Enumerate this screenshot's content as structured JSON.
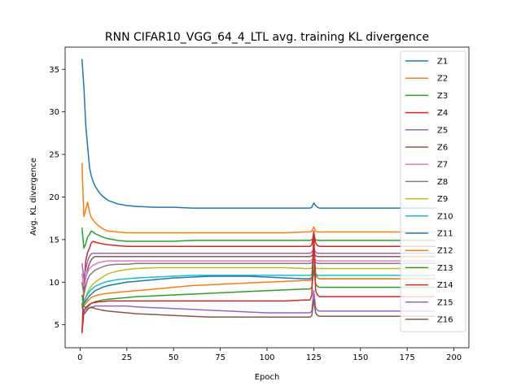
{
  "chart_data": {
    "type": "line",
    "title": "RNN CIFAR10_VGG_64_4_LTL avg. training KL divergence",
    "xlabel": "Epoch",
    "ylabel": "Avg. KL divergence",
    "xlim": [
      -8,
      208
    ],
    "ylim": [
      2.3,
      37.6
    ],
    "xticks": [
      0,
      25,
      50,
      75,
      100,
      125,
      150,
      175,
      200
    ],
    "yticks": [
      5,
      10,
      15,
      20,
      25,
      30,
      35
    ],
    "legend_position": "upper right",
    "grid": false,
    "x": [
      1,
      2,
      3,
      4,
      5,
      6,
      7,
      8,
      10,
      12,
      15,
      20,
      25,
      30,
      40,
      50,
      60,
      70,
      80,
      90,
      100,
      110,
      120,
      123,
      124,
      125,
      126,
      127,
      128,
      130,
      135,
      140,
      150,
      160,
      170,
      175,
      180,
      190
    ],
    "series": [
      {
        "name": "Z1",
        "color": "#1f77b4",
        "values": [
          36.2,
          33.0,
          28.5,
          26.0,
          23.5,
          22.5,
          21.8,
          21.3,
          20.6,
          20.1,
          19.6,
          19.2,
          19.0,
          18.9,
          18.8,
          18.8,
          18.7,
          18.7,
          18.7,
          18.7,
          18.7,
          18.7,
          18.7,
          18.7,
          18.8,
          19.3,
          19.0,
          18.8,
          18.7,
          18.7,
          18.7,
          18.7,
          18.7,
          18.7,
          18.7,
          18.7,
          18.7,
          18.7
        ]
      },
      {
        "name": "Z2",
        "color": "#ff7f0e",
        "values": [
          24.0,
          17.7,
          18.5,
          19.4,
          18.2,
          17.6,
          17.3,
          17.0,
          16.6,
          16.3,
          16.0,
          15.9,
          15.8,
          15.8,
          15.8,
          15.8,
          15.8,
          15.8,
          15.8,
          15.8,
          15.8,
          15.8,
          15.9,
          15.9,
          16.0,
          16.5,
          16.0,
          15.9,
          15.9,
          15.9,
          15.9,
          15.9,
          15.9,
          15.9,
          15.9,
          15.9,
          15.9,
          15.9
        ]
      },
      {
        "name": "Z3",
        "color": "#2ca02c",
        "values": [
          16.4,
          14.0,
          14.5,
          15.3,
          15.6,
          16.0,
          15.9,
          15.7,
          15.5,
          15.3,
          15.1,
          14.9,
          14.8,
          14.8,
          14.8,
          14.8,
          14.9,
          14.9,
          14.9,
          14.9,
          14.9,
          14.9,
          14.9,
          14.9,
          15.0,
          15.2,
          15.0,
          14.9,
          14.9,
          14.9,
          14.9,
          14.9,
          14.9,
          14.9,
          14.9,
          14.9,
          14.9,
          14.9
        ]
      },
      {
        "name": "Z4",
        "color": "#d62728",
        "values": [
          4.0,
          9.5,
          12.5,
          13.5,
          14.0,
          14.6,
          14.8,
          14.7,
          14.6,
          14.5,
          14.4,
          14.3,
          14.2,
          14.2,
          14.2,
          14.2,
          14.2,
          14.2,
          14.2,
          14.2,
          14.2,
          14.2,
          14.2,
          14.2,
          14.4,
          15.9,
          14.6,
          14.3,
          14.2,
          14.2,
          14.2,
          14.2,
          14.2,
          14.2,
          14.2,
          14.2,
          14.2,
          14.2
        ]
      },
      {
        "name": "Z5",
        "color": "#9467bd",
        "values": [
          12.2,
          10.5,
          11.5,
          12.5,
          13.0,
          13.3,
          13.4,
          13.4,
          13.4,
          13.4,
          13.4,
          13.4,
          13.4,
          13.4,
          13.4,
          13.4,
          13.4,
          13.4,
          13.4,
          13.4,
          13.4,
          13.4,
          13.4,
          13.4,
          13.5,
          14.0,
          13.5,
          13.4,
          13.4,
          13.4,
          13.4,
          13.4,
          13.4,
          13.4,
          13.4,
          13.4,
          13.4,
          13.4
        ]
      },
      {
        "name": "Z6",
        "color": "#8c564b",
        "values": [
          10.0,
          9.0,
          10.5,
          11.5,
          12.2,
          12.6,
          12.9,
          13.0,
          13.0,
          13.0,
          13.0,
          13.0,
          13.0,
          13.0,
          13.0,
          13.0,
          13.0,
          13.0,
          13.0,
          13.0,
          13.0,
          13.0,
          13.0,
          13.0,
          13.1,
          13.5,
          13.1,
          13.0,
          13.0,
          13.0,
          13.0,
          13.0,
          13.0,
          13.0,
          13.0,
          13.0,
          13.0,
          13.0
        ]
      },
      {
        "name": "Z7",
        "color": "#e377c2",
        "values": [
          11.0,
          9.5,
          10.5,
          11.2,
          11.6,
          11.8,
          12.0,
          12.1,
          12.3,
          12.4,
          12.5,
          12.5,
          12.5,
          12.5,
          12.5,
          12.5,
          12.5,
          12.5,
          12.5,
          12.5,
          12.5,
          12.5,
          12.5,
          12.5,
          12.6,
          13.0,
          12.6,
          12.5,
          12.5,
          12.5,
          12.5,
          12.5,
          12.5,
          12.5,
          12.5,
          12.5,
          12.5,
          12.5
        ]
      },
      {
        "name": "Z8",
        "color": "#7f7f7f",
        "values": [
          10.0,
          8.5,
          9.5,
          10.3,
          10.8,
          11.0,
          11.2,
          11.4,
          11.6,
          11.8,
          12.0,
          12.1,
          12.1,
          12.2,
          12.2,
          12.2,
          12.2,
          12.2,
          12.2,
          12.2,
          12.2,
          12.2,
          12.2,
          12.2,
          12.3,
          12.7,
          12.3,
          12.2,
          12.2,
          12.2,
          12.2,
          12.2,
          12.2,
          12.2,
          12.2,
          12.2,
          12.2,
          12.2
        ]
      },
      {
        "name": "Z9",
        "color": "#bcbd22",
        "values": [
          8.0,
          7.5,
          8.2,
          8.8,
          9.2,
          9.5,
          9.8,
          10.0,
          10.3,
          10.6,
          11.0,
          11.3,
          11.5,
          11.6,
          11.7,
          11.7,
          11.7,
          11.7,
          11.7,
          11.7,
          11.7,
          11.7,
          11.6,
          11.6,
          11.7,
          12.2,
          11.7,
          11.6,
          11.6,
          11.6,
          11.6,
          11.6,
          11.6,
          11.6,
          11.6,
          11.6,
          11.6,
          11.6
        ]
      },
      {
        "name": "Z10",
        "color": "#17becf",
        "values": [
          7.5,
          7.8,
          8.2,
          8.6,
          8.9,
          9.1,
          9.3,
          9.5,
          9.7,
          9.9,
          10.1,
          10.3,
          10.4,
          10.5,
          10.6,
          10.7,
          10.8,
          10.8,
          10.8,
          10.8,
          10.8,
          10.8,
          10.8,
          10.8,
          10.9,
          12.0,
          11.0,
          10.8,
          10.8,
          10.8,
          10.8,
          10.8,
          10.8,
          10.8,
          10.8,
          10.8,
          10.8,
          10.8
        ]
      },
      {
        "name": "Z11",
        "color": "#1f77b4",
        "values": [
          7.0,
          7.5,
          7.8,
          8.1,
          8.4,
          8.6,
          8.8,
          9.0,
          9.2,
          9.4,
          9.6,
          9.8,
          10.0,
          10.1,
          10.3,
          10.5,
          10.6,
          10.7,
          10.7,
          10.7,
          10.6,
          10.5,
          10.4,
          10.4,
          10.6,
          14.5,
          11.0,
          10.5,
          10.4,
          10.4,
          10.4,
          10.4,
          10.4,
          10.4,
          10.4,
          10.4,
          10.4,
          10.4
        ]
      },
      {
        "name": "Z12",
        "color": "#ff7f0e",
        "values": [
          7.5,
          7.2,
          7.5,
          7.8,
          8.0,
          8.2,
          8.3,
          8.4,
          8.5,
          8.6,
          8.7,
          8.8,
          8.9,
          9.0,
          9.2,
          9.4,
          9.6,
          9.7,
          9.8,
          9.9,
          10.0,
          10.1,
          10.2,
          10.2,
          10.4,
          13.0,
          10.8,
          10.5,
          10.4,
          10.4,
          10.4,
          10.4,
          10.4,
          10.4,
          10.4,
          10.4,
          10.4,
          10.4
        ]
      },
      {
        "name": "Z13",
        "color": "#2ca02c",
        "values": [
          8.5,
          7.2,
          7.0,
          7.1,
          7.3,
          7.5,
          7.6,
          7.7,
          7.8,
          7.9,
          8.0,
          8.1,
          8.2,
          8.3,
          8.4,
          8.5,
          8.6,
          8.7,
          8.8,
          8.9,
          9.0,
          9.1,
          9.2,
          9.2,
          9.4,
          11.5,
          9.8,
          9.5,
          9.4,
          9.4,
          9.4,
          9.4,
          9.4,
          9.4,
          9.4,
          9.4,
          9.4,
          9.4
        ]
      },
      {
        "name": "Z14",
        "color": "#d62728",
        "values": [
          4.0,
          6.5,
          7.0,
          7.2,
          7.4,
          7.5,
          7.6,
          7.6,
          7.7,
          7.7,
          7.8,
          7.8,
          7.8,
          7.8,
          7.8,
          7.8,
          7.8,
          7.8,
          7.8,
          7.8,
          7.8,
          7.8,
          7.9,
          7.9,
          8.5,
          16.0,
          9.0,
          8.5,
          8.3,
          8.3,
          8.3,
          8.3,
          8.3,
          8.3,
          8.3,
          8.3,
          8.3,
          8.3
        ]
      },
      {
        "name": "Z15",
        "color": "#9467bd",
        "values": [
          7.0,
          6.8,
          6.8,
          6.9,
          7.0,
          7.1,
          7.1,
          7.2,
          7.2,
          7.2,
          7.2,
          7.2,
          7.2,
          7.1,
          7.0,
          6.9,
          6.8,
          6.7,
          6.6,
          6.5,
          6.4,
          6.4,
          6.4,
          6.4,
          6.6,
          9.0,
          7.0,
          6.7,
          6.6,
          6.6,
          6.6,
          6.6,
          6.6,
          6.6,
          6.6,
          6.6,
          6.6,
          6.6
        ]
      },
      {
        "name": "Z16",
        "color": "#8c564b",
        "values": [
          7.5,
          6.2,
          6.5,
          6.8,
          7.0,
          7.0,
          7.0,
          6.9,
          6.8,
          6.7,
          6.6,
          6.5,
          6.4,
          6.3,
          6.2,
          6.1,
          6.0,
          5.9,
          5.9,
          5.9,
          5.9,
          5.9,
          5.9,
          5.9,
          6.1,
          8.0,
          6.4,
          6.1,
          6.0,
          6.0,
          6.0,
          6.0,
          6.0,
          6.0,
          6.0,
          6.0,
          6.0,
          6.0
        ]
      }
    ]
  }
}
